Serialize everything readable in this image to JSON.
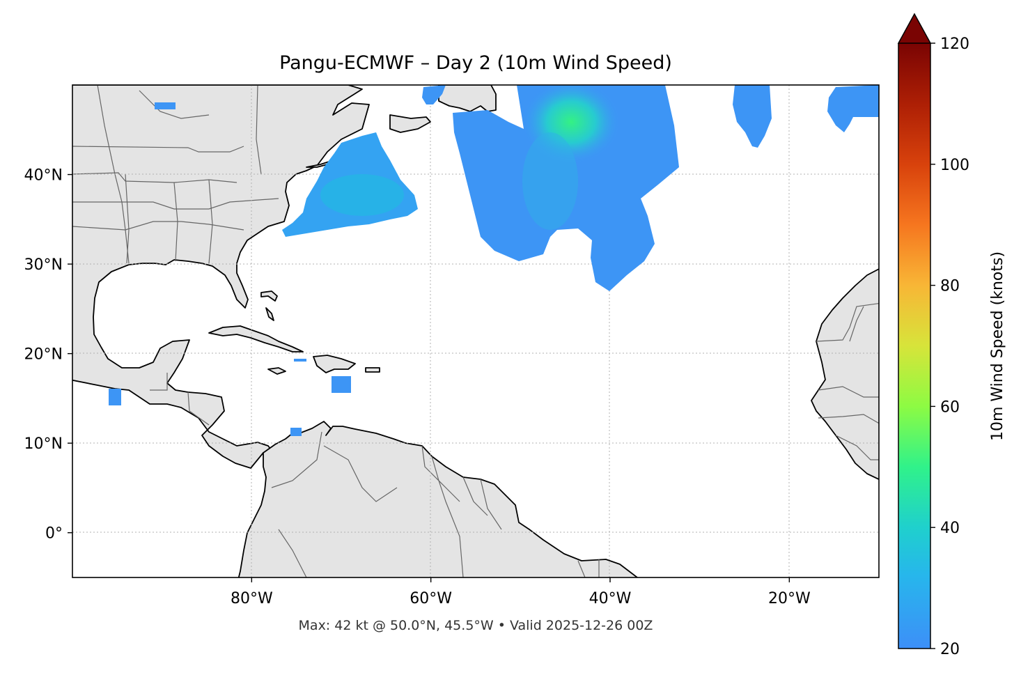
{
  "title": "Pangu-ECMWF – Day 2 (10m Wind Speed)",
  "footer": "Max: 42 kt @ 50.0°N, 45.5°W • Valid 2025-12-26 00Z",
  "map": {
    "lon_range": [
      -100,
      -10
    ],
    "lat_range": [
      -5,
      50
    ],
    "lon_ticks": [
      {
        "value": -80,
        "label": "80°W"
      },
      {
        "value": -60,
        "label": "60°W"
      },
      {
        "value": -40,
        "label": "40°W"
      },
      {
        "value": -20,
        "label": "20°W"
      }
    ],
    "lat_ticks": [
      {
        "value": 40,
        "label": "40°N"
      },
      {
        "value": 30,
        "label": "30°N"
      },
      {
        "value": 20,
        "label": "20°N"
      },
      {
        "value": 10,
        "label": "10°N"
      },
      {
        "value": 0,
        "label": "0°"
      }
    ],
    "land_color": "#e4e4e4",
    "coast_color": "#000000",
    "border_color": "#666666",
    "grid": true,
    "max_point": {
      "value_kt": 42,
      "lat": 50.0,
      "lon": -45.5
    }
  },
  "colorbar": {
    "label": "10m Wind Speed (knots)",
    "min": 20,
    "max": 120,
    "extend": "max",
    "extend_color": "#7a0403",
    "ticks": [
      {
        "value": 20,
        "label": "20"
      },
      {
        "value": 40,
        "label": "40"
      },
      {
        "value": 60,
        "label": "60"
      },
      {
        "value": 80,
        "label": "80"
      },
      {
        "value": 100,
        "label": "100"
      },
      {
        "value": 120,
        "label": "120"
      }
    ],
    "colors": [
      "#3d8ff8",
      "#1fc3e0",
      "#2ff28a",
      "#a3fb3c",
      "#e0d836",
      "#fca938",
      "#f3651b",
      "#cf360a",
      "#951204",
      "#7a0403"
    ]
  }
}
